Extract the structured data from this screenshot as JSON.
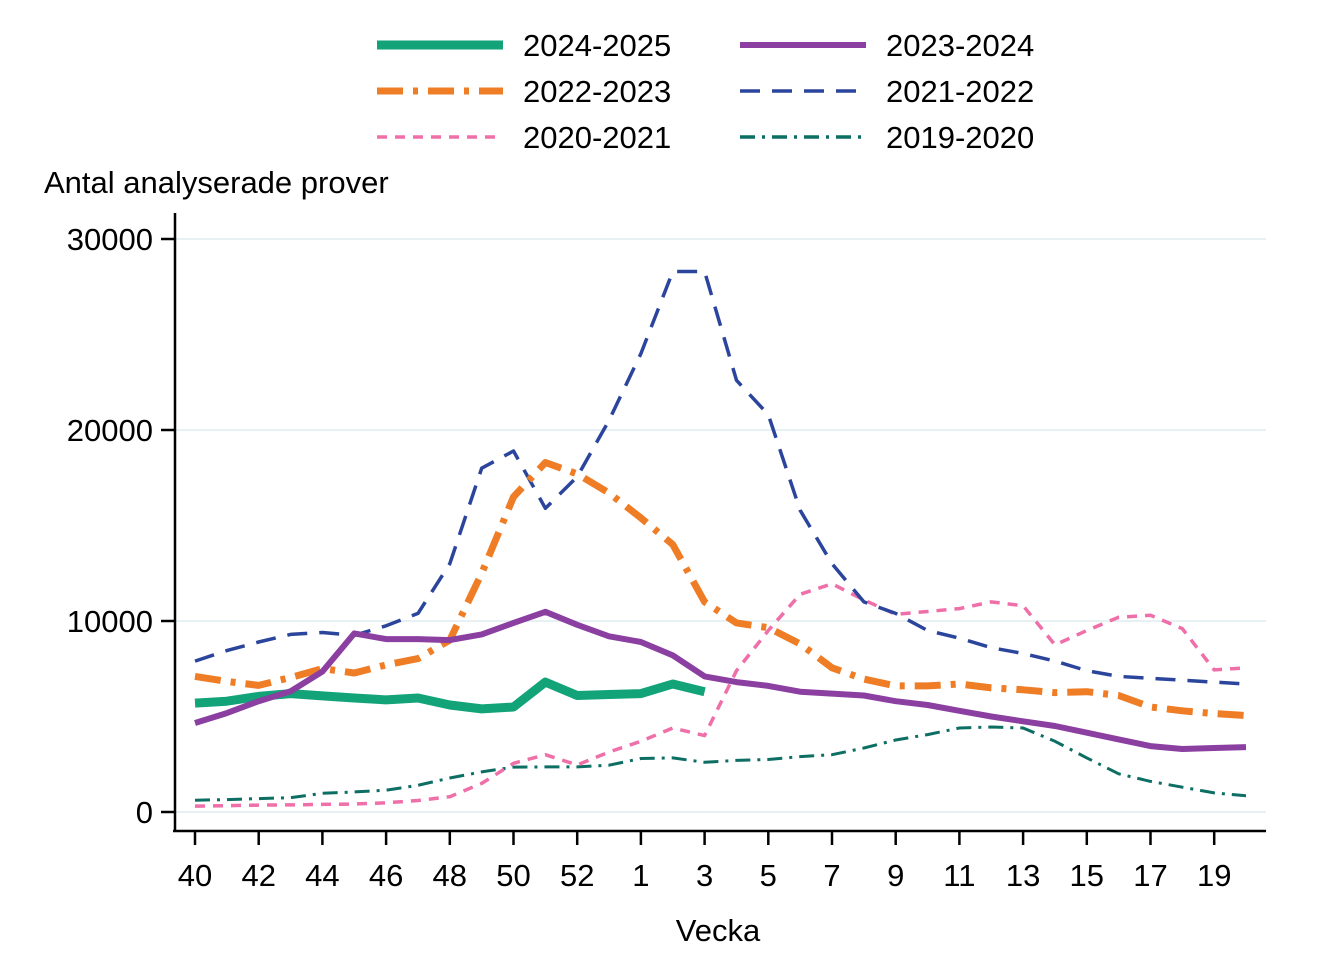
{
  "chart_data": {
    "type": "line",
    "title": "Antal analyserade prover",
    "xlabel": "Vecka",
    "ylim": [
      0,
      30000
    ],
    "y_ticks": [
      0,
      10000,
      20000,
      30000
    ],
    "y_tick_labels": [
      "0",
      "10000",
      "20000",
      "30000"
    ],
    "x_tick_labels": [
      "40",
      "42",
      "44",
      "46",
      "48",
      "50",
      "52",
      "1",
      "3",
      "5",
      "7",
      "9",
      "11",
      "13",
      "15",
      "17",
      "19"
    ],
    "x_categories": [
      "40",
      "41",
      "42",
      "43",
      "44",
      "45",
      "46",
      "47",
      "48",
      "49",
      "50",
      "51",
      "52",
      "53",
      "1",
      "2",
      "3",
      "4",
      "5",
      "6",
      "7",
      "8",
      "9",
      "10",
      "11",
      "12",
      "13",
      "14",
      "15",
      "16",
      "17",
      "18",
      "19",
      "20"
    ],
    "grid": true,
    "legend_position": "top-center",
    "colors": {
      "grid": "#e7f0f3",
      "axis": "#000000",
      "background": "#ffffff"
    },
    "series": [
      {
        "name": "2024-2025",
        "color": "#12a378",
        "style": "solid",
        "width": 9,
        "values": [
          5700,
          5800,
          6050,
          6200,
          6080,
          5970,
          5870,
          5970,
          5600,
          5400,
          5500,
          6800,
          6100,
          6150,
          6200,
          6700,
          6300,
          null,
          null,
          null,
          null,
          null,
          null,
          null,
          null,
          null,
          null,
          null,
          null,
          null,
          null,
          null,
          null,
          null
        ]
      },
      {
        "name": "2023-2024",
        "color": "#8b3fa0",
        "style": "solid",
        "width": 6,
        "values": [
          4660,
          5180,
          5800,
          6320,
          7350,
          9350,
          9050,
          9050,
          9000,
          9300,
          9900,
          10480,
          9800,
          9200,
          8900,
          8200,
          7100,
          6800,
          6600,
          6300,
          6200,
          6100,
          5800,
          5600,
          5300,
          5000,
          4750,
          4500,
          4150,
          3800,
          3450,
          3300,
          3350,
          3400
        ]
      },
      {
        "name": "2022-2023",
        "color": "#ee7d26",
        "style": "dash-dot",
        "width": 7,
        "values": [
          7100,
          6840,
          6630,
          7040,
          7510,
          7280,
          7700,
          8030,
          9000,
          12500,
          16500,
          18300,
          17700,
          16700,
          15400,
          14000,
          11000,
          9900,
          9650,
          8800,
          7550,
          6960,
          6600,
          6600,
          6700,
          6500,
          6400,
          6250,
          6300,
          6100,
          5500,
          5300,
          5150,
          5050
        ]
      },
      {
        "name": "2021-2022",
        "color": "#2b459c",
        "style": "dashed",
        "width": 3.5,
        "values": [
          7900,
          8450,
          8900,
          9300,
          9400,
          9250,
          9750,
          10400,
          13000,
          18000,
          18900,
          15900,
          17550,
          20500,
          24000,
          28300,
          28300,
          22600,
          20800,
          15800,
          13000,
          11000,
          10400,
          9500,
          9100,
          8600,
          8300,
          7900,
          7400,
          7100,
          7000,
          6900,
          6800,
          6700
        ]
      },
      {
        "name": "2020-2021",
        "color": "#ef6fa9",
        "style": "short-dash",
        "width": 3.5,
        "values": [
          310,
          330,
          360,
          370,
          400,
          420,
          480,
          600,
          800,
          1500,
          2550,
          3000,
          2460,
          3140,
          3700,
          4400,
          4000,
          7400,
          9500,
          11400,
          11950,
          11100,
          10350,
          10500,
          10650,
          11000,
          10800,
          8750,
          9500,
          10200,
          10300,
          9600,
          7440,
          7550
        ]
      },
      {
        "name": "2019-2020",
        "color": "#0d6e63",
        "style": "dash-dot-thin",
        "width": 3,
        "values": [
          620,
          650,
          700,
          750,
          980,
          1050,
          1140,
          1400,
          1780,
          2100,
          2350,
          2360,
          2360,
          2450,
          2800,
          2830,
          2600,
          2700,
          2750,
          2900,
          3000,
          3350,
          3770,
          4050,
          4400,
          4450,
          4400,
          3700,
          2830,
          2000,
          1600,
          1300,
          1000,
          850
        ]
      }
    ]
  }
}
